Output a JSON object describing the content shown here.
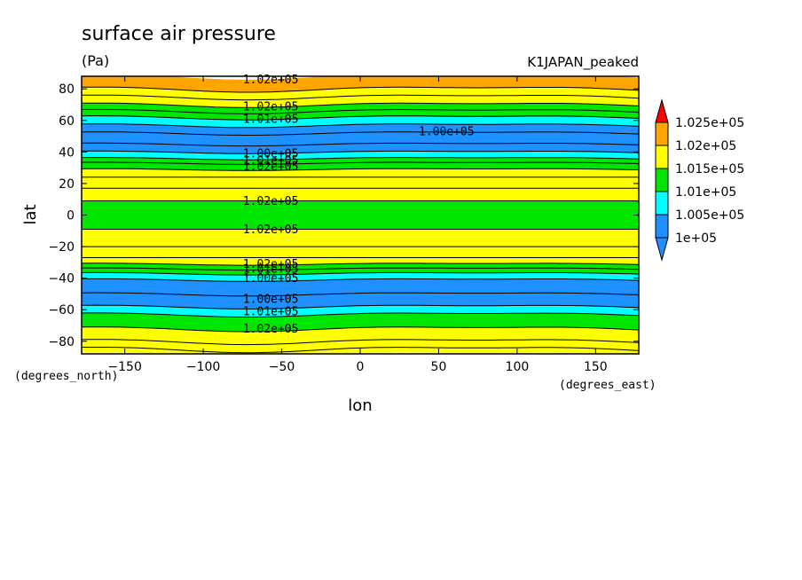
{
  "chart_data": {
    "type": "contour",
    "title": "surface air pressure",
    "units": "(Pa)",
    "dataset": "K1JAPAN_peaked",
    "xlabel": "lon",
    "ylabel": "lat",
    "x_units": "(degrees_east)",
    "y_units": "(degrees_north)",
    "xlim": [
      -177.5,
      177.5
    ],
    "ylim": [
      -88,
      88
    ],
    "x_ticks": [
      -150,
      -100,
      -50,
      0,
      50,
      100,
      150
    ],
    "x_tick_labels": [
      "−150",
      "−100",
      "−50",
      "0",
      "50",
      "100",
      "150"
    ],
    "y_ticks": [
      -80,
      -60,
      -40,
      -20,
      0,
      20,
      40,
      60,
      80
    ],
    "y_tick_labels": [
      "−80",
      "−60",
      "−40",
      "−20",
      "0",
      "20",
      "40",
      "60",
      "80"
    ],
    "colorbar": {
      "levels": [
        100000,
        100500,
        101000,
        101500,
        102000,
        102500
      ],
      "labels": [
        "1e+05",
        "1.005e+05",
        "1.01e+05",
        "1.015e+05",
        "1.02e+05",
        "1.025e+05"
      ],
      "colors": [
        "#1e90ff",
        "#00ffff",
        "#00e600",
        "#ffff00",
        "#ffa500"
      ],
      "below_color": "#1e90ff",
      "above_color": "#ff0000"
    },
    "bands": [
      {
        "lat_from": -88,
        "lat_to": -82,
        "value": 101750
      },
      {
        "lat_from": -82,
        "lat_to": -72,
        "value": 101750
      },
      {
        "lat_from": -72,
        "lat_to": -63,
        "value": 101250
      },
      {
        "lat_from": -63,
        "lat_to": -58,
        "value": 100750
      },
      {
        "lat_from": -58,
        "lat_to": -41,
        "value": 100250
      },
      {
        "lat_from": -41,
        "lat_to": -37,
        "value": 100750
      },
      {
        "lat_from": -37,
        "lat_to": -31,
        "value": 101250
      },
      {
        "lat_from": -31,
        "lat_to": -9,
        "value": 101750
      },
      {
        "lat_from": -9,
        "lat_to": 9,
        "value": 101250
      },
      {
        "lat_from": 9,
        "lat_to": 29,
        "value": 101750
      },
      {
        "lat_from": 29,
        "lat_to": 36,
        "value": 101250
      },
      {
        "lat_from": 36,
        "lat_to": 40,
        "value": 100750
      },
      {
        "lat_from": 40,
        "lat_to": 57,
        "value": 100250
      },
      {
        "lat_from": 57,
        "lat_to": 62,
        "value": 100750
      },
      {
        "lat_from": 62,
        "lat_to": 70,
        "value": 101250
      },
      {
        "lat_from": 70,
        "lat_to": 80,
        "value": 101750
      },
      {
        "lat_from": 80,
        "lat_to": 88,
        "value": 102250
      }
    ],
    "contour_lats": [
      -85,
      -80,
      -72,
      -63,
      -58,
      -50,
      -41,
      -37,
      -34,
      -31,
      -27,
      -20,
      -9,
      9,
      17,
      24,
      29,
      33,
      36,
      40,
      45,
      52,
      57,
      62,
      66,
      70,
      75,
      80
    ],
    "contour_labels": [
      {
        "text": "1.02e+05",
        "lon": -57,
        "lat": 86
      },
      {
        "text": "1.02e+05",
        "lon": -57,
        "lat": 69
      },
      {
        "text": "1.01e+05",
        "lon": -57,
        "lat": 61
      },
      {
        "text": "1.00e+05",
        "lon": 55,
        "lat": 53
      },
      {
        "text": "1.00e+05",
        "lon": -57,
        "lat": 39
      },
      {
        "text": "1.01e+05",
        "lon": -57,
        "lat": 35
      },
      {
        "text": "1.02e+05",
        "lon": -57,
        "lat": 31
      },
      {
        "text": "1.02e+05",
        "lon": -57,
        "lat": 9
      },
      {
        "text": "1.02e+05",
        "lon": -57,
        "lat": -9
      },
      {
        "text": "1.02e+05",
        "lon": -57,
        "lat": -31
      },
      {
        "text": "1.01e+05",
        "lon": -57,
        "lat": -34
      },
      {
        "text": "1.00e+05",
        "lon": -57,
        "lat": -40
      },
      {
        "text": "1.00e+05",
        "lon": -57,
        "lat": -53
      },
      {
        "text": "1.01e+05",
        "lon": -57,
        "lat": -61
      },
      {
        "text": "1.02e+05",
        "lon": -57,
        "lat": -72
      }
    ]
  }
}
